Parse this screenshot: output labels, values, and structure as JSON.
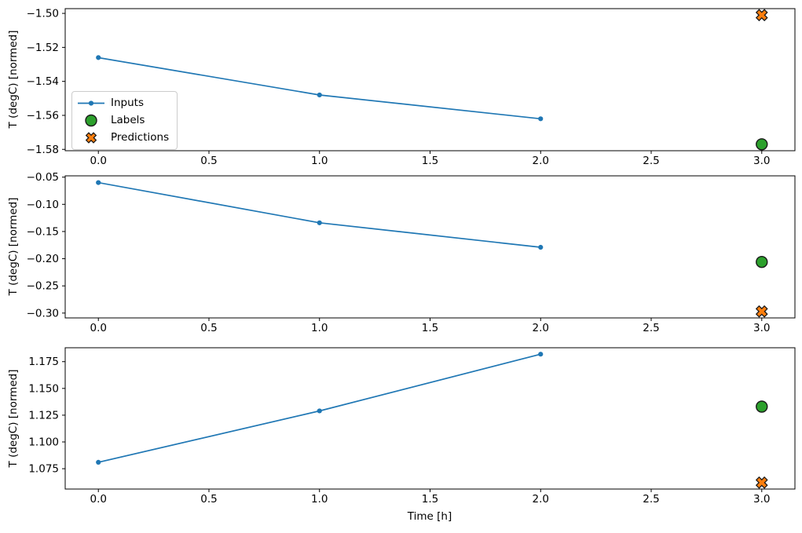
{
  "figure": {
    "xlabel": "Time [h]",
    "background": "#ffffff",
    "spine_color": "#000000",
    "legend": {
      "location": "lower left of first subplot",
      "entries": [
        {
          "label": "Inputs",
          "marker": "line-dot",
          "color": "#1f77b4"
        },
        {
          "label": "Labels",
          "marker": "circle",
          "color": "#2ca02c",
          "edge_color": "#1a1a1a"
        },
        {
          "label": "Predictions",
          "marker": "X",
          "color": "#ff7f0e",
          "edge_color": "#1a1a1a"
        }
      ]
    }
  },
  "chart_data": [
    {
      "type": "line",
      "title": "",
      "xlabel": "",
      "ylabel": "T (degC) [normed]",
      "grid": false,
      "xlim": [
        -0.15,
        3.15
      ],
      "ylim": [
        -1.5808,
        -1.4972
      ],
      "xticks": {
        "values": [
          0,
          0.5,
          1,
          1.5,
          2,
          2.5,
          3
        ],
        "labels": [
          "0.0",
          "0.5",
          "1.0",
          "1.5",
          "2.0",
          "2.5",
          "3.0"
        ]
      },
      "yticks": {
        "values": [
          -1.5,
          -1.52,
          -1.54,
          -1.56,
          -1.58
        ],
        "labels": [
          "−1.50",
          "−1.52",
          "−1.54",
          "−1.56",
          "−1.58"
        ]
      },
      "series": [
        {
          "name": "Inputs",
          "plot": "line",
          "marker": "dot",
          "color": "#1f77b4",
          "x": [
            0,
            1,
            2
          ],
          "y": [
            -1.526,
            -1.548,
            -1.562
          ]
        },
        {
          "name": "Labels",
          "plot": "scatter",
          "marker": "circle",
          "color": "#2ca02c",
          "edge_color": "#1a1a1a",
          "x": [
            3
          ],
          "y": [
            -1.577
          ]
        },
        {
          "name": "Predictions",
          "plot": "scatter",
          "marker": "X",
          "color": "#ff7f0e",
          "edge_color": "#1a1a1a",
          "x": [
            3
          ],
          "y": [
            -1.501
          ]
        }
      ],
      "show_legend": true
    },
    {
      "type": "line",
      "title": "",
      "xlabel": "",
      "ylabel": "T (degC) [normed]",
      "grid": false,
      "xlim": [
        -0.15,
        3.15
      ],
      "ylim": [
        -0.3089,
        -0.0476
      ],
      "xticks": {
        "values": [
          0,
          0.5,
          1,
          1.5,
          2,
          2.5,
          3
        ],
        "labels": [
          "0.0",
          "0.5",
          "1.0",
          "1.5",
          "2.0",
          "2.5",
          "3.0"
        ]
      },
      "yticks": {
        "values": [
          -0.05,
          -0.1,
          -0.15,
          -0.2,
          -0.25,
          -0.3
        ],
        "labels": [
          "−0.05",
          "−0.10",
          "−0.15",
          "−0.20",
          "−0.25",
          "−0.30"
        ]
      },
      "series": [
        {
          "name": "Inputs",
          "plot": "line",
          "marker": "dot",
          "color": "#1f77b4",
          "x": [
            0,
            1,
            2
          ],
          "y": [
            -0.06,
            -0.134,
            -0.179
          ]
        },
        {
          "name": "Labels",
          "plot": "scatter",
          "marker": "circle",
          "color": "#2ca02c",
          "edge_color": "#1a1a1a",
          "x": [
            3
          ],
          "y": [
            -0.206
          ]
        },
        {
          "name": "Predictions",
          "plot": "scatter",
          "marker": "X",
          "color": "#ff7f0e",
          "edge_color": "#1a1a1a",
          "x": [
            3
          ],
          "y": [
            -0.297
          ]
        }
      ],
      "show_legend": false
    },
    {
      "type": "line",
      "title": "",
      "xlabel": "Time [h]",
      "ylabel": "T (degC) [normed]",
      "grid": false,
      "xlim": [
        -0.15,
        3.15
      ],
      "ylim": [
        1.056,
        1.188
      ],
      "xticks": {
        "values": [
          0,
          0.5,
          1,
          1.5,
          2,
          2.5,
          3
        ],
        "labels": [
          "0.0",
          "0.5",
          "1.0",
          "1.5",
          "2.0",
          "2.5",
          "3.0"
        ]
      },
      "yticks": {
        "values": [
          1.075,
          1.1,
          1.125,
          1.15,
          1.175
        ],
        "labels": [
          "1.075",
          "1.100",
          "1.125",
          "1.150",
          "1.175"
        ]
      },
      "series": [
        {
          "name": "Inputs",
          "plot": "line",
          "marker": "dot",
          "color": "#1f77b4",
          "x": [
            0,
            1,
            2
          ],
          "y": [
            1.081,
            1.129,
            1.182
          ]
        },
        {
          "name": "Labels",
          "plot": "scatter",
          "marker": "circle",
          "color": "#2ca02c",
          "edge_color": "#1a1a1a",
          "x": [
            3
          ],
          "y": [
            1.133
          ]
        },
        {
          "name": "Predictions",
          "plot": "scatter",
          "marker": "X",
          "color": "#ff7f0e",
          "edge_color": "#1a1a1a",
          "x": [
            3
          ],
          "y": [
            1.062
          ]
        }
      ],
      "show_legend": false
    }
  ]
}
